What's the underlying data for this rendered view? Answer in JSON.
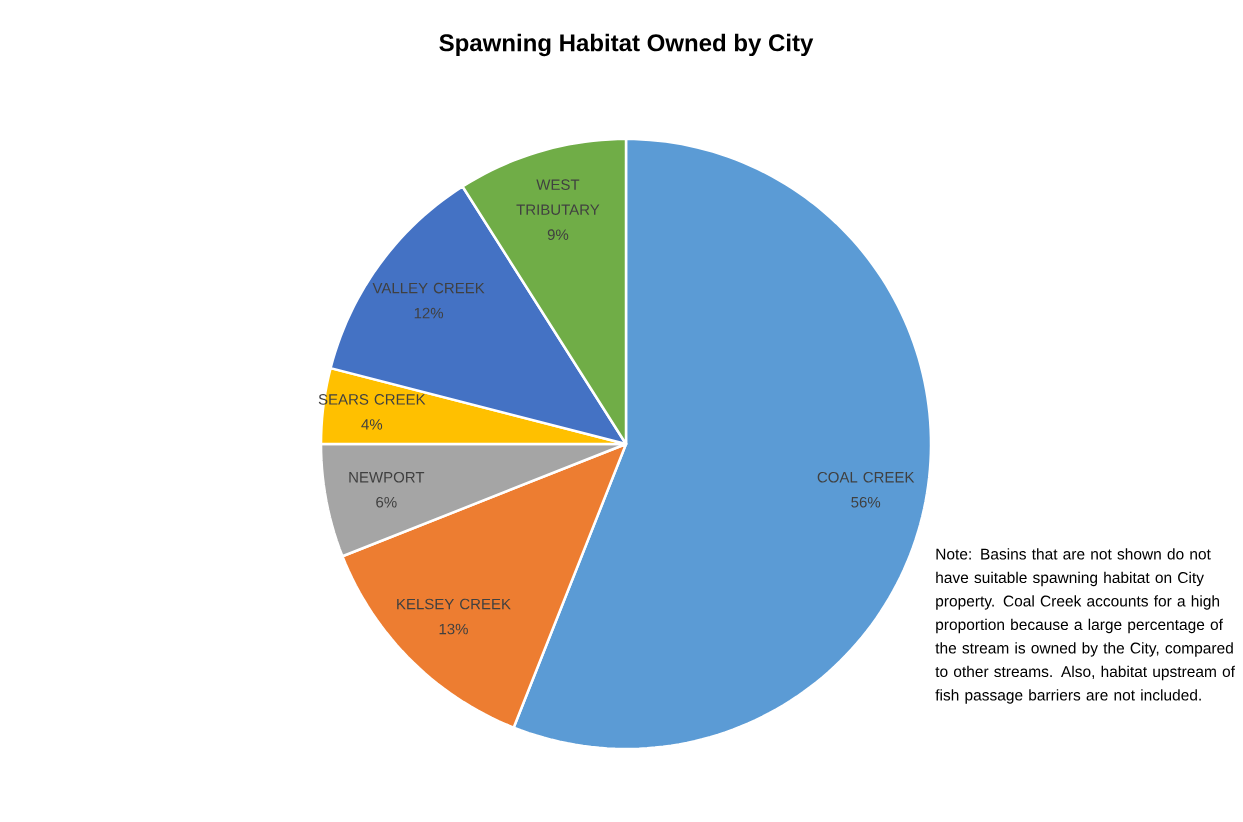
{
  "chart_data": {
    "type": "pie",
    "title": "Spawning Habitat Owned by City",
    "categories": [
      "COAL CREEK",
      "KELSEY CREEK",
      "NEWPORT",
      "SEARS CREEK",
      "VALLEY CREEK",
      "WEST TRIBUTARY"
    ],
    "values": [
      56,
      13,
      6,
      4,
      12,
      9
    ],
    "value_labels": [
      "56%",
      "13%",
      "6%",
      "4%",
      "12%",
      "9%"
    ],
    "colors": [
      "#5b9bd5",
      "#ed7d31",
      "#a5a5a5",
      "#ffc000",
      "#4472c4",
      "#70ad47"
    ],
    "annotations": [
      "Note:  Basins that are not shown do not have suitable spawning habitat on City property. Coal Creek accounts for a high proportion because a large percentage of the stream is owned by the City, compared to other streams.  Also, habitat upstream of fish passage barriers are not included."
    ]
  }
}
